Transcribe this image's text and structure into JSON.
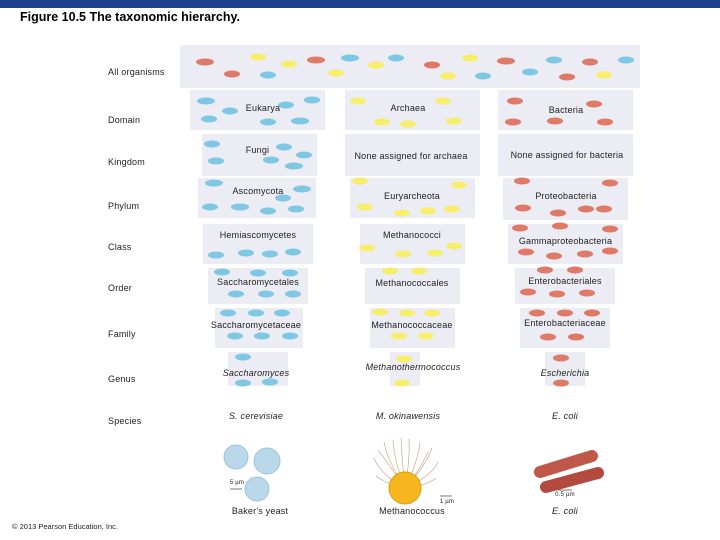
{
  "title": "Figure 10.5 The taxonomic hierarchy.",
  "copyright": "© 2013 Pearson Education, Inc.",
  "ranks": {
    "all": "All organisms",
    "domain": "Domain",
    "kingdom": "Kingdom",
    "phylum": "Phylum",
    "class": "Class",
    "order": "Order",
    "family": "Family",
    "genus": "Genus",
    "species": "Species"
  },
  "columns": {
    "eukarya": {
      "domain": "Eukarya",
      "kingdom": "Fungi",
      "phylum": "Ascomycota",
      "class": "Hemiascomycetes",
      "order": "Saccharomycetales",
      "family": "Saccharomycetaceae",
      "genus": "Saccharomyces",
      "species": "S. cerevisiae",
      "organism": "Baker's yeast",
      "scale": "5 µm"
    },
    "archaea": {
      "domain": "Archaea",
      "kingdom": "None assigned for archaea",
      "phylum": "Euryarcheota",
      "class": "Methanococci",
      "order": "Methanococcales",
      "family": "Methanococcaceae",
      "genus": "Methanothermococcus",
      "species": "M. okinawensis",
      "organism": "Methanococcus",
      "scale": "1 µm"
    },
    "bacteria": {
      "domain": "Bacteria",
      "kingdom": "None assigned for bacteria",
      "phylum": "Proteobacteria",
      "class": "Gammaproteobacteria",
      "order": "Enterobacteriales",
      "family": "Enterobacteriaceae",
      "genus": "Escherichia",
      "species": "E. coli",
      "organism": "E. coli",
      "scale": "0.5 µm"
    }
  },
  "colors": {
    "eukarya_cell": "#7ec8e3",
    "archaea_cell": "#f7ee6a",
    "bacteria_cell": "#e07a68",
    "band": "#ececf4",
    "topbar": "#1f3f8f"
  }
}
